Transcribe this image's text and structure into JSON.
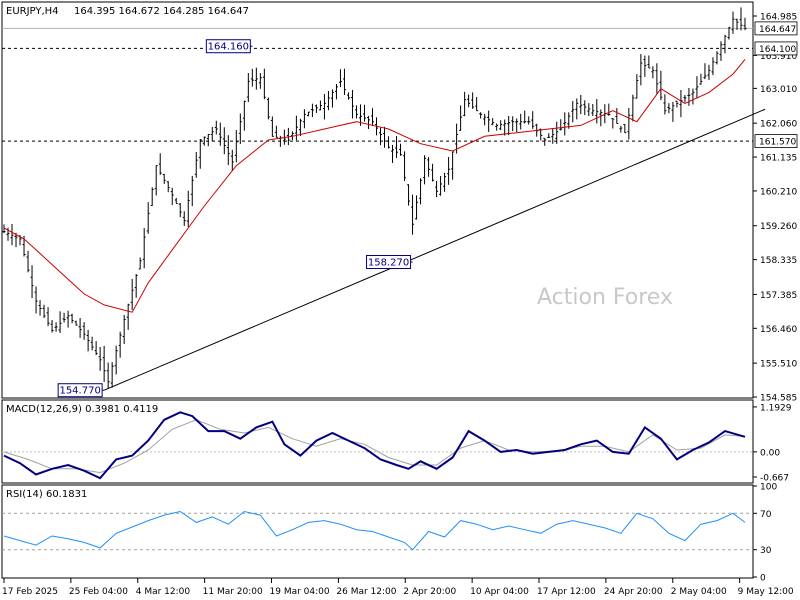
{
  "header": {
    "symbol_label": "EURJPY,H4",
    "ohlc_text": "164.395 164.672 164.285 164.647"
  },
  "watermark": "Action Forex",
  "colors": {
    "price_bars": "#000000",
    "moving_average": "#cc0000",
    "macd_line": "#000080",
    "signal_line": "#a0a0a0",
    "rsi_line": "#1e90ff",
    "price_box_bg": "#ffffff",
    "dashed_levels": "#000000",
    "trendline": "#000000"
  },
  "chart_data": [
    {
      "type": "candlestick",
      "title": "EURJPY,H4",
      "x_tick_labels": [
        "17 Feb 2025",
        "25 Feb 04:00",
        "4 Mar 12:00",
        "11 Mar 20:00",
        "19 Mar 04:00",
        "26 Mar 12:00",
        "2 Apr 20:00",
        "10 Apr 04:00",
        "17 Apr 12:00",
        "24 Apr 20:00",
        "2 May 04:00",
        "9 May 12:00"
      ],
      "y_tick_labels": [
        "164.985",
        "163.910",
        "163.010",
        "162.060",
        "161.135",
        "160.210",
        "159.260",
        "158.335",
        "157.385",
        "156.460",
        "155.510",
        "154.585"
      ],
      "ylim": [
        154.585,
        165.34
      ],
      "current_price": 164.647,
      "horizontal_levels": [
        {
          "value": 164.1,
          "label": "164.100"
        },
        {
          "value": 161.57,
          "label": "161.570"
        },
        {
          "value": 164.647,
          "label": "164.647"
        }
      ],
      "annotations": [
        {
          "label": "164.160",
          "value": 164.16,
          "bar_index": 62
        },
        {
          "label": "158.270",
          "value": 158.27,
          "bar_index": 102
        },
        {
          "label": "154.770",
          "value": 154.77,
          "bar_index": 25
        }
      ],
      "trendline": {
        "from": {
          "bar_index": 25,
          "value": 154.77
        },
        "to": {
          "bar_index": 185,
          "value": 162.2
        }
      },
      "moving_average_points": [
        [
          0,
          159.2
        ],
        [
          5,
          158.9
        ],
        [
          10,
          158.4
        ],
        [
          15,
          157.9
        ],
        [
          20,
          157.4
        ],
        [
          25,
          157.1
        ],
        [
          32,
          156.9
        ],
        [
          36,
          157.7
        ],
        [
          42,
          158.6
        ],
        [
          50,
          159.8
        ],
        [
          58,
          160.9
        ],
        [
          66,
          161.6
        ],
        [
          72,
          161.7
        ],
        [
          80,
          161.9
        ],
        [
          88,
          162.1
        ],
        [
          96,
          161.9
        ],
        [
          104,
          161.5
        ],
        [
          112,
          161.3
        ],
        [
          120,
          161.7
        ],
        [
          128,
          161.8
        ],
        [
          136,
          161.9
        ],
        [
          144,
          162.0
        ],
        [
          152,
          162.4
        ],
        [
          158,
          162.1
        ],
        [
          164,
          163.0
        ],
        [
          170,
          162.6
        ],
        [
          176,
          162.9
        ],
        [
          182,
          163.4
        ],
        [
          185,
          163.8
        ]
      ],
      "price_path": [
        [
          0,
          159.1
        ],
        [
          4,
          158.9
        ],
        [
          8,
          157.2
        ],
        [
          12,
          156.4
        ],
        [
          16,
          156.8
        ],
        [
          20,
          156.3
        ],
        [
          24,
          155.6
        ],
        [
          26,
          155.0
        ],
        [
          30,
          156.7
        ],
        [
          34,
          158.3
        ],
        [
          38,
          160.9
        ],
        [
          42,
          160.1
        ],
        [
          45,
          159.4
        ],
        [
          49,
          161.6
        ],
        [
          53,
          161.9
        ],
        [
          57,
          161.0
        ],
        [
          61,
          163.2
        ],
        [
          64,
          163.3
        ],
        [
          67,
          161.7
        ],
        [
          71,
          161.6
        ],
        [
          75,
          162.3
        ],
        [
          80,
          162.6
        ],
        [
          84,
          163.2
        ],
        [
          88,
          162.3
        ],
        [
          92,
          162.1
        ],
        [
          96,
          161.4
        ],
        [
          99,
          161.2
        ],
        [
          102,
          159.3
        ],
        [
          105,
          161.1
        ],
        [
          108,
          160.2
        ],
        [
          111,
          160.8
        ],
        [
          115,
          162.7
        ],
        [
          119,
          162.3
        ],
        [
          123,
          162.0
        ],
        [
          127,
          162.1
        ],
        [
          131,
          162.1
        ],
        [
          135,
          161.6
        ],
        [
          139,
          161.9
        ],
        [
          143,
          162.6
        ],
        [
          147,
          162.4
        ],
        [
          151,
          162.3
        ],
        [
          155,
          161.8
        ],
        [
          159,
          163.7
        ],
        [
          162,
          163.5
        ],
        [
          165,
          162.4
        ],
        [
          168,
          162.6
        ],
        [
          172,
          162.9
        ],
        [
          176,
          163.5
        ],
        [
          179,
          164.2
        ],
        [
          182,
          164.9
        ],
        [
          185,
          164.65
        ]
      ]
    },
    {
      "type": "line",
      "title": "MACD(12,26,9) 0.3981 0.4119",
      "y_tick_labels": [
        "1.1929",
        "0.00",
        "-0.667"
      ],
      "ylim": [
        -0.8,
        1.35
      ],
      "series": [
        {
          "name": "MACD",
          "points": [
            [
              0,
              -0.1
            ],
            [
              4,
              -0.3
            ],
            [
              8,
              -0.6
            ],
            [
              12,
              -0.45
            ],
            [
              16,
              -0.35
            ],
            [
              20,
              -0.5
            ],
            [
              24,
              -0.7
            ],
            [
              28,
              -0.2
            ],
            [
              32,
              -0.1
            ],
            [
              36,
              0.3
            ],
            [
              40,
              0.85
            ],
            [
              44,
              1.05
            ],
            [
              47,
              0.95
            ],
            [
              51,
              0.55
            ],
            [
              55,
              0.55
            ],
            [
              59,
              0.35
            ],
            [
              63,
              0.65
            ],
            [
              67,
              0.8
            ],
            [
              70,
              0.2
            ],
            [
              74,
              -0.1
            ],
            [
              78,
              0.3
            ],
            [
              82,
              0.5
            ],
            [
              86,
              0.3
            ],
            [
              90,
              0.1
            ],
            [
              94,
              -0.2
            ],
            [
              98,
              -0.35
            ],
            [
              101,
              -0.45
            ],
            [
              104,
              -0.25
            ],
            [
              108,
              -0.45
            ],
            [
              112,
              -0.15
            ],
            [
              116,
              0.55
            ],
            [
              120,
              0.3
            ],
            [
              124,
              0.0
            ],
            [
              128,
              0.05
            ],
            [
              132,
              -0.05
            ],
            [
              136,
              0.0
            ],
            [
              140,
              0.05
            ],
            [
              144,
              0.2
            ],
            [
              148,
              0.3
            ],
            [
              152,
              0.0
            ],
            [
              156,
              -0.05
            ],
            [
              160,
              0.65
            ],
            [
              164,
              0.35
            ],
            [
              168,
              -0.2
            ],
            [
              172,
              0.05
            ],
            [
              176,
              0.25
            ],
            [
              180,
              0.55
            ],
            [
              185,
              0.4
            ]
          ]
        },
        {
          "name": "Signal",
          "points": [
            [
              0,
              0.0
            ],
            [
              6,
              -0.2
            ],
            [
              12,
              -0.45
            ],
            [
              18,
              -0.45
            ],
            [
              24,
              -0.55
            ],
            [
              30,
              -0.3
            ],
            [
              36,
              0.05
            ],
            [
              42,
              0.6
            ],
            [
              48,
              0.85
            ],
            [
              54,
              0.6
            ],
            [
              60,
              0.5
            ],
            [
              66,
              0.65
            ],
            [
              72,
              0.35
            ],
            [
              78,
              0.15
            ],
            [
              84,
              0.35
            ],
            [
              90,
              0.2
            ],
            [
              96,
              -0.15
            ],
            [
              102,
              -0.35
            ],
            [
              108,
              -0.35
            ],
            [
              114,
              0.1
            ],
            [
              120,
              0.3
            ],
            [
              126,
              0.05
            ],
            [
              132,
              0.0
            ],
            [
              138,
              0.02
            ],
            [
              144,
              0.15
            ],
            [
              150,
              0.15
            ],
            [
              156,
              0.0
            ],
            [
              162,
              0.45
            ],
            [
              168,
              0.05
            ],
            [
              174,
              0.1
            ],
            [
              180,
              0.45
            ],
            [
              185,
              0.41
            ]
          ]
        }
      ]
    },
    {
      "type": "line",
      "title": "RSI(14) 60.1831",
      "y_tick_labels": [
        "100",
        "70",
        "30",
        "0"
      ],
      "ylim": [
        0,
        100
      ],
      "reference_levels": [
        70,
        30
      ],
      "series": [
        {
          "name": "RSI(14)",
          "points": [
            [
              0,
              45
            ],
            [
              4,
              40
            ],
            [
              8,
              35
            ],
            [
              12,
              45
            ],
            [
              16,
              42
            ],
            [
              20,
              38
            ],
            [
              24,
              32
            ],
            [
              28,
              48
            ],
            [
              32,
              55
            ],
            [
              36,
              62
            ],
            [
              40,
              68
            ],
            [
              44,
              72
            ],
            [
              48,
              60
            ],
            [
              52,
              66
            ],
            [
              56,
              58
            ],
            [
              60,
              72
            ],
            [
              64,
              68
            ],
            [
              68,
              45
            ],
            [
              72,
              52
            ],
            [
              76,
              60
            ],
            [
              80,
              62
            ],
            [
              84,
              58
            ],
            [
              88,
              52
            ],
            [
              92,
              50
            ],
            [
              96,
              44
            ],
            [
              100,
              38
            ],
            [
              102,
              30
            ],
            [
              106,
              50
            ],
            [
              110,
              44
            ],
            [
              114,
              62
            ],
            [
              118,
              58
            ],
            [
              122,
              52
            ],
            [
              126,
              56
            ],
            [
              130,
              52
            ],
            [
              134,
              48
            ],
            [
              138,
              58
            ],
            [
              142,
              62
            ],
            [
              146,
              58
            ],
            [
              150,
              54
            ],
            [
              154,
              48
            ],
            [
              158,
              70
            ],
            [
              162,
              64
            ],
            [
              166,
              48
            ],
            [
              170,
              40
            ],
            [
              174,
              58
            ],
            [
              178,
              62
            ],
            [
              182,
              70
            ],
            [
              185,
              60
            ]
          ]
        }
      ]
    }
  ]
}
